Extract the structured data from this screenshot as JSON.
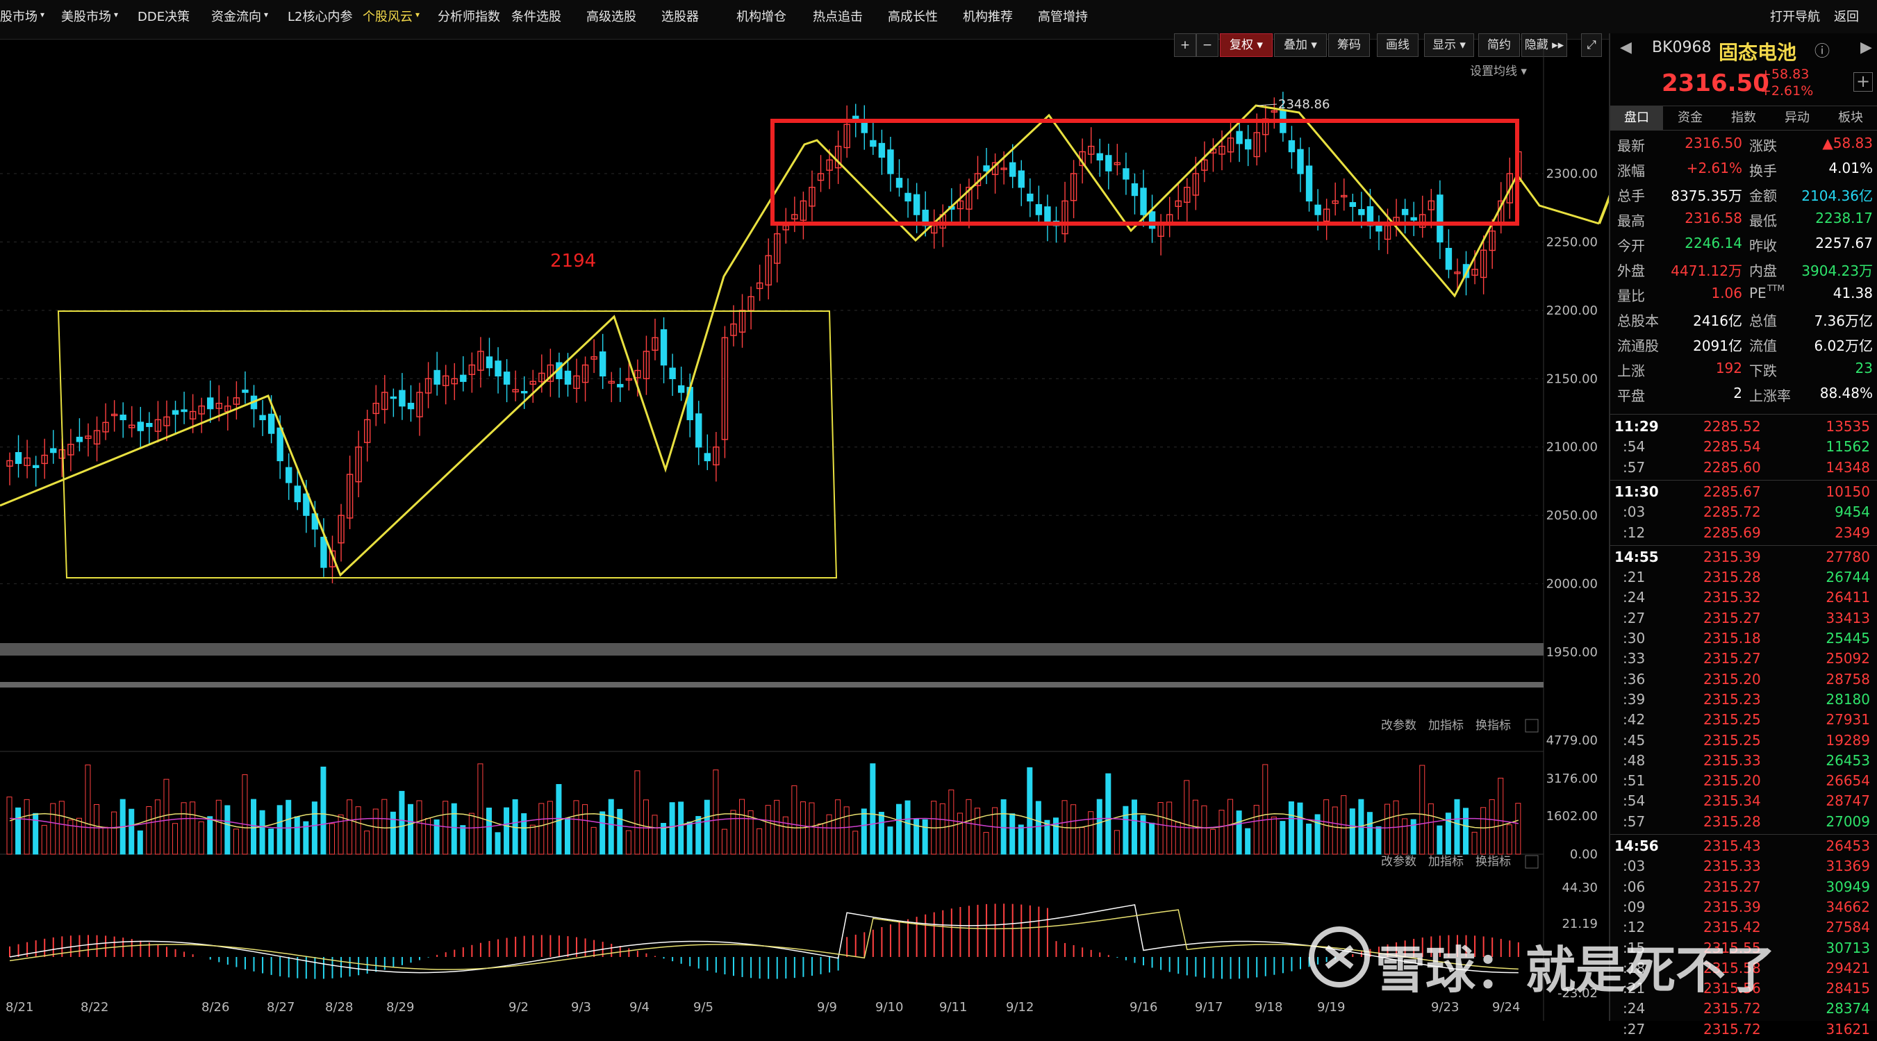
{
  "menu": {
    "items": [
      {
        "label": "股市场",
        "arrow": "▾"
      },
      {
        "label": "美股市场",
        "arrow": "▾"
      },
      {
        "label": "DDE决策",
        "arrow": ""
      },
      {
        "label": "资金流向",
        "arrow": "▾"
      },
      {
        "label": "L2核心内参",
        "arrow": ""
      },
      {
        "label": "个股风云",
        "arrow": "▾"
      },
      {
        "label": "分析师指数",
        "arrow": ""
      },
      {
        "label": "条件选股",
        "arrow": ""
      },
      {
        "label": "高级选股",
        "arrow": ""
      },
      {
        "label": "选股器",
        "arrow": ""
      },
      {
        "label": "机构增仓",
        "arrow": ""
      },
      {
        "label": "热点追击",
        "arrow": ""
      },
      {
        "label": "高成长性",
        "arrow": ""
      },
      {
        "label": "机构推荐",
        "arrow": ""
      },
      {
        "label": "高管增持",
        "arrow": ""
      }
    ],
    "open_nav": "打开导航",
    "back": "返回"
  },
  "toolbar": {
    "plus": "+",
    "minus": "−",
    "fuquan": "复权",
    "diejia": "叠加",
    "chouma": "筹码",
    "huaxian": "画线",
    "xianshi": "显示",
    "jianyue": "简约",
    "yincang": "隐藏",
    "settings_ma": "设置均线"
  },
  "chart_data": {
    "type": "candlestick",
    "y_ticks": [
      "2300.00",
      "2250.00",
      "2200.00",
      "2150.00",
      "2100.00",
      "2050.00",
      "2000.00",
      "1950.00"
    ],
    "x_ticks": [
      "8/21",
      "8/22",
      "8/26",
      "8/27",
      "8/28",
      "8/29",
      "9/2",
      "9/3",
      "9/4",
      "9/5",
      "9/9",
      "9/10",
      "9/11",
      "9/12",
      "9/16",
      "9/17",
      "9/18",
      "9/19",
      "9/23",
      "9/24"
    ],
    "annotations": [
      "2348.86",
      "2194"
    ],
    "volume_ticks": [
      "4779.00",
      "3176.00",
      "1602.00",
      "0.00"
    ],
    "macd_ticks": [
      "44.30",
      "21.19",
      "-23.02"
    ],
    "panel_tools": [
      "改参数",
      "加指标",
      "换指标"
    ]
  },
  "quote": {
    "code": "BK0968",
    "name": "固态电池",
    "price": "2316.50",
    "change": "+58.83",
    "change_pct": "+2.61%",
    "tabs": [
      "盘口",
      "资金",
      "指数",
      "异动",
      "板块"
    ],
    "stats": [
      {
        "l1": "最新",
        "v1": "2316.50",
        "c1": "red",
        "l2": "涨跌",
        "v2": "▲58.83",
        "c2": "red"
      },
      {
        "l1": "涨幅",
        "v1": "+2.61%",
        "c1": "red",
        "l2": "换手",
        "v2": "4.01%",
        "c2": "wht"
      },
      {
        "l1": "总手",
        "v1": "8375.35万",
        "c1": "wht",
        "l2": "金额",
        "v2": "2104.36亿",
        "c2": "cyn"
      },
      {
        "l1": "最高",
        "v1": "2316.58",
        "c1": "red",
        "l2": "最低",
        "v2": "2238.17",
        "c2": "grn"
      },
      {
        "l1": "今开",
        "v1": "2246.14",
        "c1": "grn",
        "l2": "昨收",
        "v2": "2257.67",
        "c2": "wht"
      },
      {
        "l1": "外盘",
        "v1": "4471.12万",
        "c1": "red",
        "l2": "内盘",
        "v2": "3904.23万",
        "c2": "grn"
      },
      {
        "l1": "量比",
        "v1": "1.06",
        "c1": "red",
        "l2": "PE",
        "v2": "41.38",
        "c2": "wht"
      },
      {
        "l1": "总股本",
        "v1": "2416亿",
        "c1": "wht",
        "l2": "总值",
        "v2": "7.36万亿",
        "c2": "wht"
      },
      {
        "l1": "流通股",
        "v1": "2091亿",
        "c1": "wht",
        "l2": "流值",
        "v2": "6.02万亿",
        "c2": "wht"
      },
      {
        "l1": "上涨",
        "v1": "192",
        "c1": "red",
        "l2": "下跌",
        "v2": "23",
        "c2": "grn"
      },
      {
        "l1": "平盘",
        "v1": "2",
        "c1": "wht",
        "l2": "上涨率",
        "v2": "88.48%",
        "c2": "wht"
      }
    ],
    "pe_sup": "TTM",
    "ticks": [
      {
        "t": "11:29",
        "p": "2285.52",
        "v": "13535",
        "bold": true
      },
      {
        "t": ":54",
        "p": "2285.54",
        "v": "11562"
      },
      {
        "t": ":57",
        "p": "2285.60",
        "v": "14348"
      },
      {
        "t": "11:30",
        "p": "2285.67",
        "v": "10150",
        "bold": true
      },
      {
        "t": ":03",
        "p": "2285.72",
        "v": "9454"
      },
      {
        "t": ":12",
        "p": "2285.69",
        "v": "2349"
      },
      {
        "t": "14:55",
        "p": "2315.39",
        "v": "27780",
        "bold": true
      },
      {
        "t": ":21",
        "p": "2315.28",
        "v": "26744"
      },
      {
        "t": ":24",
        "p": "2315.32",
        "v": "26411"
      },
      {
        "t": ":27",
        "p": "2315.27",
        "v": "33413"
      },
      {
        "t": ":30",
        "p": "2315.18",
        "v": "25445"
      },
      {
        "t": ":33",
        "p": "2315.27",
        "v": "25092"
      },
      {
        "t": ":36",
        "p": "2315.20",
        "v": "28758"
      },
      {
        "t": ":39",
        "p": "2315.23",
        "v": "28180"
      },
      {
        "t": ":42",
        "p": "2315.25",
        "v": "27931"
      },
      {
        "t": ":45",
        "p": "2315.25",
        "v": "19289"
      },
      {
        "t": ":48",
        "p": "2315.33",
        "v": "26453"
      },
      {
        "t": ":51",
        "p": "2315.20",
        "v": "26654"
      },
      {
        "t": ":54",
        "p": "2315.34",
        "v": "28747"
      },
      {
        "t": ":57",
        "p": "2315.28",
        "v": "27009"
      },
      {
        "t": "14:56",
        "p": "2315.43",
        "v": "26453",
        "bold": true
      },
      {
        "t": ":03",
        "p": "2315.33",
        "v": "31369"
      },
      {
        "t": ":06",
        "p": "2315.27",
        "v": "30949"
      },
      {
        "t": ":09",
        "p": "2315.39",
        "v": "34662"
      },
      {
        "t": ":12",
        "p": "2315.42",
        "v": "27584"
      },
      {
        "t": ":15",
        "p": "2315.55",
        "v": "30713"
      },
      {
        "t": ":18",
        "p": "2315.58",
        "v": "29421"
      },
      {
        "t": ":21",
        "p": "2315.56",
        "v": "28415"
      },
      {
        "t": ":24",
        "p": "2315.72",
        "v": "28374"
      },
      {
        "t": ":27",
        "p": "2315.72",
        "v": "31621"
      }
    ]
  },
  "watermark": {
    "text": "雪球：就是死不了"
  }
}
